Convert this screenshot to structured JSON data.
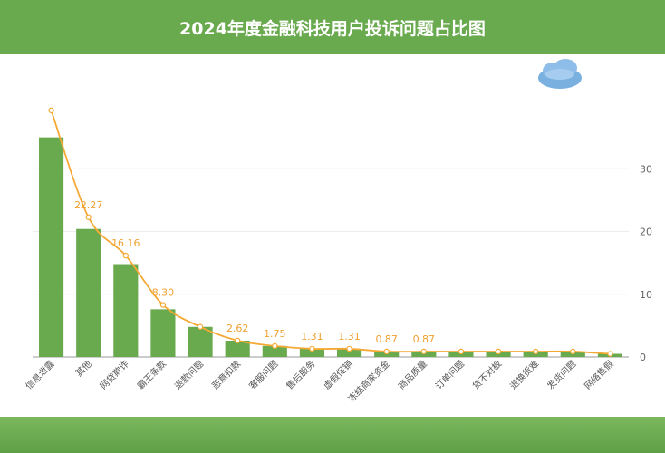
{
  "title": "2024年度金融科技用户投诉问题占比图",
  "chart_data": {
    "type": "bar",
    "title": "2024年度金融科技用户投诉问题占比图",
    "categories": [
      "信息泄露",
      "其他",
      "网贷欺诈",
      "霸王条款",
      "退款问题",
      "恶意扣款",
      "客服问题",
      "售后服务",
      "虚假促销",
      "冻结商家资金",
      "商品质量",
      "订单问题",
      "货不对板",
      "退换货难",
      "发货问题",
      "网络售假"
    ],
    "bar_values": [
      35.0,
      20.4,
      14.8,
      7.6,
      4.8,
      2.6,
      1.75,
      1.31,
      1.31,
      0.87,
      0.87,
      0.87,
      0.87,
      0.87,
      0.87,
      0.5
    ],
    "line_values": [
      39.3,
      22.27,
      16.16,
      8.3,
      4.8,
      2.62,
      1.75,
      1.31,
      1.31,
      0.87,
      0.87,
      0.87,
      0.87,
      0.87,
      0.87,
      0.5
    ],
    "data_labels": [
      "",
      "22.27",
      "16.16",
      "8.30",
      "",
      "2.62",
      "1.75",
      "1.31",
      "1.31",
      "0.87",
      "0.87",
      "",
      "",
      "",
      "",
      ""
    ],
    "y_ticks": [
      0,
      10,
      20,
      30
    ],
    "ylim": [
      0,
      40
    ],
    "xlabel": "",
    "ylabel": "",
    "grid": true,
    "colors": {
      "bar": "#6aaa4f",
      "line": "#f5a935",
      "banner": "#6aaa4f"
    }
  }
}
